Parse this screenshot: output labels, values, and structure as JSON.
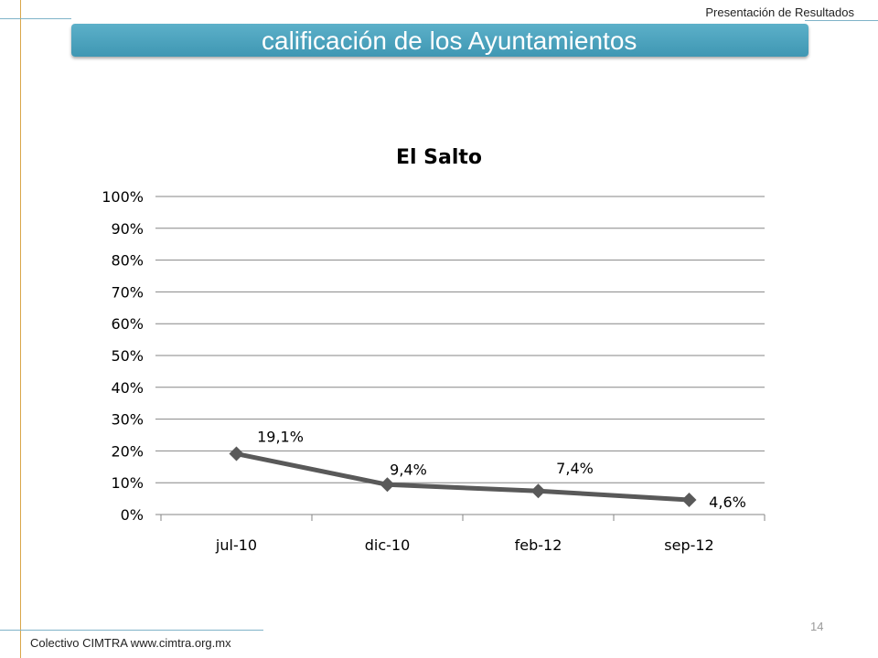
{
  "header": {
    "presentation_label": "Presentación de Resultados",
    "title": "calificación de los  Ayuntamientos"
  },
  "footer": {
    "source": "Colectivo CIMTRA www.cimtra.org.mx",
    "page_number": "14"
  },
  "colors": {
    "accent": "#4aa3bf",
    "series": "#595959",
    "grid": "#868686"
  },
  "chart_data": {
    "type": "line",
    "title": "El Salto",
    "categories": [
      "jul-10",
      "dic-10",
      "feb-12",
      "sep-12"
    ],
    "values": [
      19.1,
      9.4,
      7.4,
      4.6
    ],
    "data_labels": [
      "19,1%",
      "9,4%",
      "7,4%",
      "4,6%"
    ],
    "y_ticks": [
      "0%",
      "10%",
      "20%",
      "30%",
      "40%",
      "50%",
      "60%",
      "70%",
      "80%",
      "90%",
      "100%"
    ],
    "ylim": [
      0,
      100
    ],
    "xlabel": "",
    "ylabel": "",
    "grid": true,
    "marker": "diamond",
    "legend": "none"
  }
}
